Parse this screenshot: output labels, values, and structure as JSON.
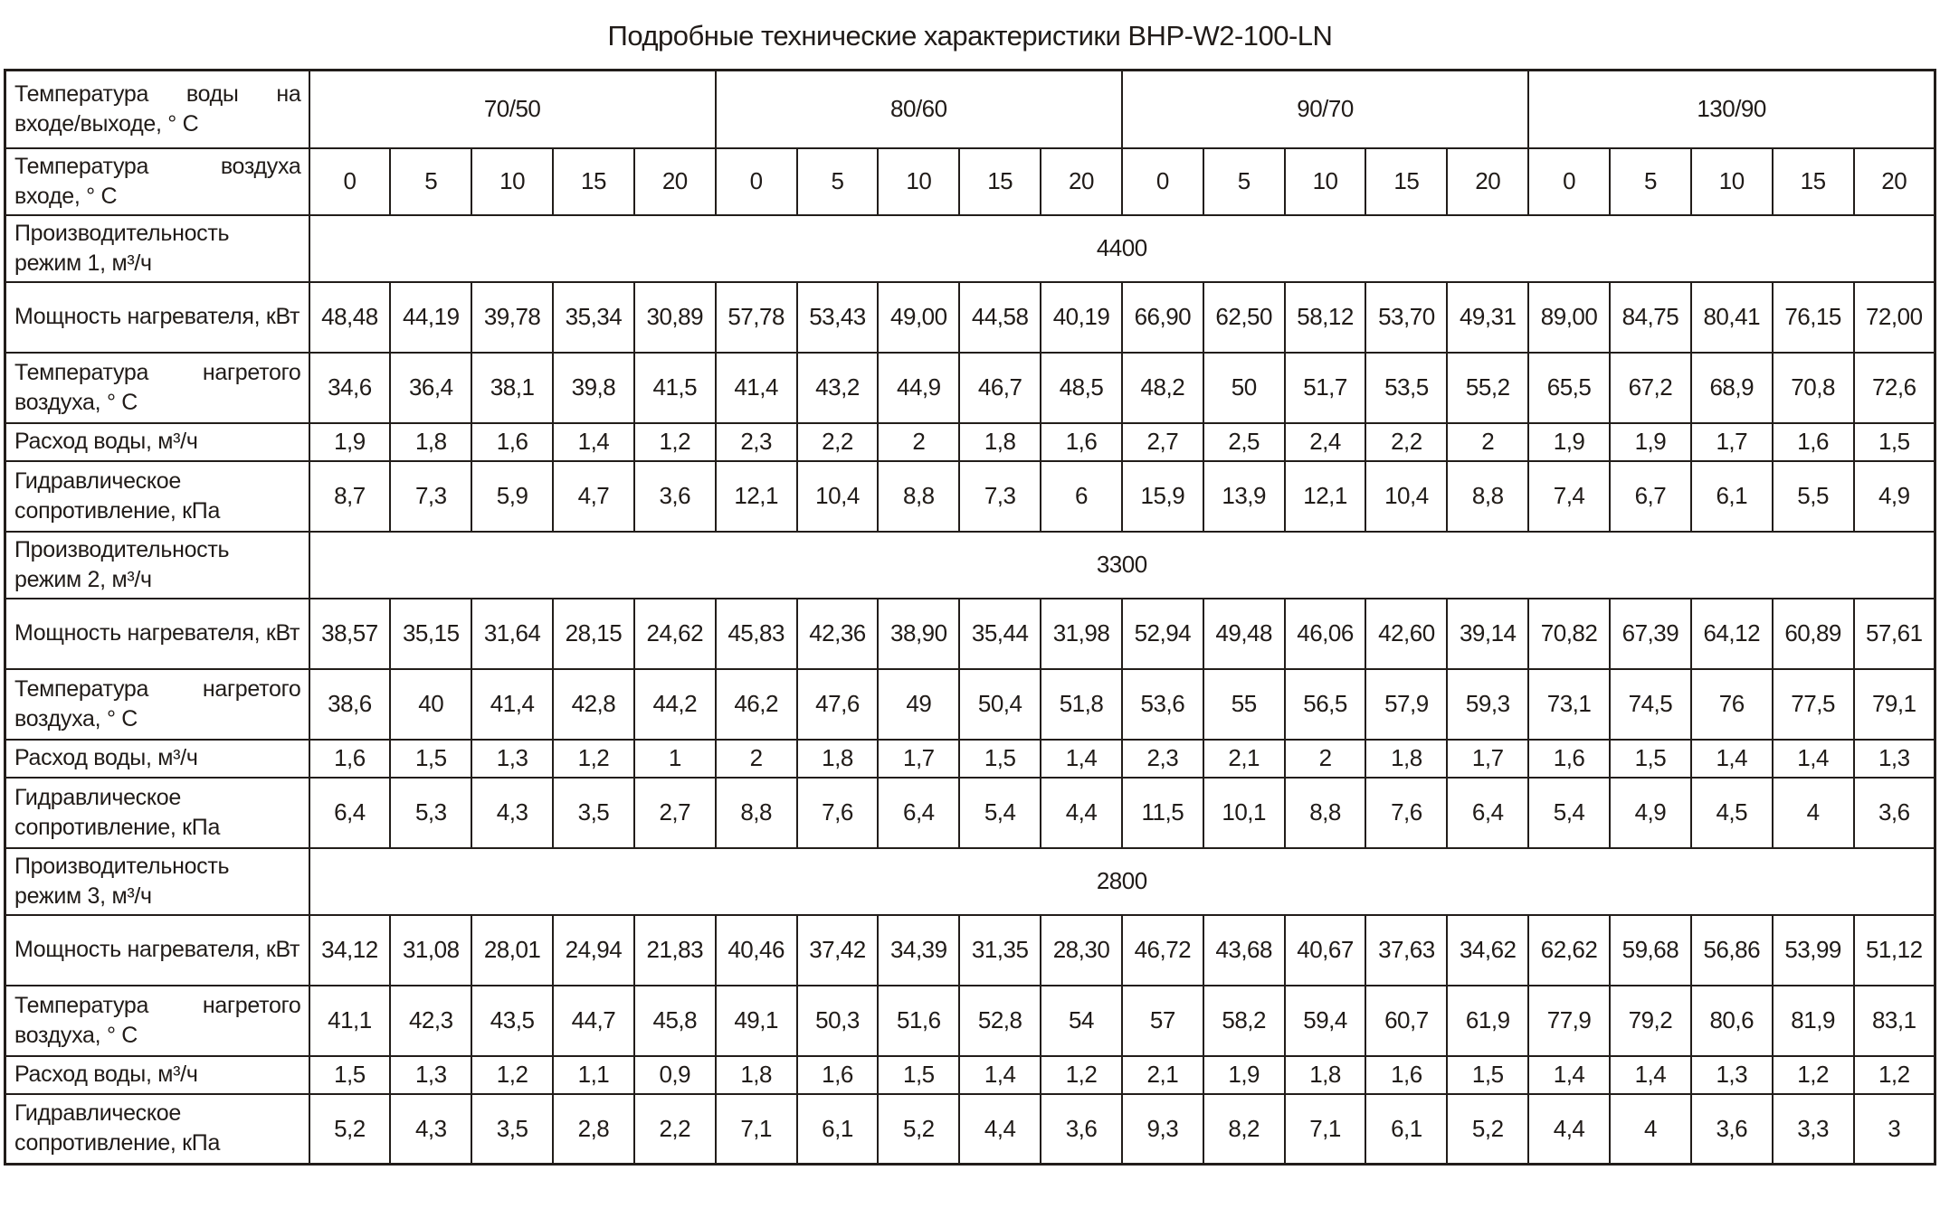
{
  "title": "Подробные технические характеристики BHP-W2-100-LN",
  "table": {
    "row_header_1": {
      "label": "Температура воды на входе/выходе, ° С",
      "groups": [
        "70/50",
        "80/60",
        "90/70",
        "130/90"
      ]
    },
    "row_header_2": {
      "label": "Температура воздуха входе, ° С",
      "values": [
        "0",
        "5",
        "10",
        "15",
        "20",
        "0",
        "5",
        "10",
        "15",
        "20",
        "0",
        "5",
        "10",
        "15",
        "20",
        "0",
        "5",
        "10",
        "15",
        "20"
      ]
    },
    "sections": [
      {
        "capacity_label": "Производительность режим 1, м³/ч",
        "capacity_value": "4400",
        "rows": [
          {
            "label": "Мощность нагревателя, кВт",
            "values": [
              "48,48",
              "44,19",
              "39,78",
              "35,34",
              "30,89",
              "57,78",
              "53,43",
              "49,00",
              "44,58",
              "40,19",
              "66,90",
              "62,50",
              "58,12",
              "53,70",
              "49,31",
              "89,00",
              "84,75",
              "80,41",
              "76,15",
              "72,00"
            ]
          },
          {
            "label": "Температура нагретого воздуха, ° С",
            "values": [
              "34,6",
              "36,4",
              "38,1",
              "39,8",
              "41,5",
              "41,4",
              "43,2",
              "44,9",
              "46,7",
              "48,5",
              "48,2",
              "50",
              "51,7",
              "53,5",
              "55,2",
              "65,5",
              "67,2",
              "68,9",
              "70,8",
              "72,6"
            ]
          },
          {
            "label": "Расход воды, м³/ч",
            "values": [
              "1,9",
              "1,8",
              "1,6",
              "1,4",
              "1,2",
              "2,3",
              "2,2",
              "2",
              "1,8",
              "1,6",
              "2,7",
              "2,5",
              "2,4",
              "2,2",
              "2",
              "1,9",
              "1,9",
              "1,7",
              "1,6",
              "1,5"
            ]
          },
          {
            "label": "Гидравлическое сопротивление, кПа",
            "values": [
              "8,7",
              "7,3",
              "5,9",
              "4,7",
              "3,6",
              "12,1",
              "10,4",
              "8,8",
              "7,3",
              "6",
              "15,9",
              "13,9",
              "12,1",
              "10,4",
              "8,8",
              "7,4",
              "6,7",
              "6,1",
              "5,5",
              "4,9"
            ]
          }
        ]
      },
      {
        "capacity_label": "Производительность режим 2, м³/ч",
        "capacity_value": "3300",
        "rows": [
          {
            "label": "Мощность нагревателя, кВт",
            "values": [
              "38,57",
              "35,15",
              "31,64",
              "28,15",
              "24,62",
              "45,83",
              "42,36",
              "38,90",
              "35,44",
              "31,98",
              "52,94",
              "49,48",
              "46,06",
              "42,60",
              "39,14",
              "70,82",
              "67,39",
              "64,12",
              "60,89",
              "57,61"
            ]
          },
          {
            "label": "Температура нагретого воздуха, ° С",
            "values": [
              "38,6",
              "40",
              "41,4",
              "42,8",
              "44,2",
              "46,2",
              "47,6",
              "49",
              "50,4",
              "51,8",
              "53,6",
              "55",
              "56,5",
              "57,9",
              "59,3",
              "73,1",
              "74,5",
              "76",
              "77,5",
              "79,1"
            ]
          },
          {
            "label": "Расход воды, м³/ч",
            "values": [
              "1,6",
              "1,5",
              "1,3",
              "1,2",
              "1",
              "2",
              "1,8",
              "1,7",
              "1,5",
              "1,4",
              "2,3",
              "2,1",
              "2",
              "1,8",
              "1,7",
              "1,6",
              "1,5",
              "1,4",
              "1,4",
              "1,3"
            ]
          },
          {
            "label": "Гидравлическое сопротивление, кПа",
            "values": [
              "6,4",
              "5,3",
              "4,3",
              "3,5",
              "2,7",
              "8,8",
              "7,6",
              "6,4",
              "5,4",
              "4,4",
              "11,5",
              "10,1",
              "8,8",
              "7,6",
              "6,4",
              "5,4",
              "4,9",
              "4,5",
              "4",
              "3,6"
            ]
          }
        ]
      },
      {
        "capacity_label": "Производительность режим 3, м³/ч",
        "capacity_value": "2800",
        "rows": [
          {
            "label": "Мощность нагревателя, кВт",
            "values": [
              "34,12",
              "31,08",
              "28,01",
              "24,94",
              "21,83",
              "40,46",
              "37,42",
              "34,39",
              "31,35",
              "28,30",
              "46,72",
              "43,68",
              "40,67",
              "37,63",
              "34,62",
              "62,62",
              "59,68",
              "56,86",
              "53,99",
              "51,12"
            ]
          },
          {
            "label": "Температура нагретого воздуха, ° С",
            "values": [
              "41,1",
              "42,3",
              "43,5",
              "44,7",
              "45,8",
              "49,1",
              "50,3",
              "51,6",
              "52,8",
              "54",
              "57",
              "58,2",
              "59,4",
              "60,7",
              "61,9",
              "77,9",
              "79,2",
              "80,6",
              "81,9",
              "83,1"
            ]
          },
          {
            "label": "Расход воды, м³/ч",
            "values": [
              "1,5",
              "1,3",
              "1,2",
              "1,1",
              "0,9",
              "1,8",
              "1,6",
              "1,5",
              "1,4",
              "1,2",
              "2,1",
              "1,9",
              "1,8",
              "1,6",
              "1,5",
              "1,4",
              "1,4",
              "1,3",
              "1,2",
              "1,2"
            ]
          },
          {
            "label": "Гидравлическое сопротивление, кПа",
            "values": [
              "5,2",
              "4,3",
              "3,5",
              "2,8",
              "2,2",
              "7,1",
              "6,1",
              "5,2",
              "4,4",
              "3,6",
              "9,3",
              "8,2",
              "7,1",
              "6,1",
              "5,2",
              "4,4",
              "4",
              "3,6",
              "3,3",
              "3"
            ]
          }
        ]
      }
    ]
  }
}
